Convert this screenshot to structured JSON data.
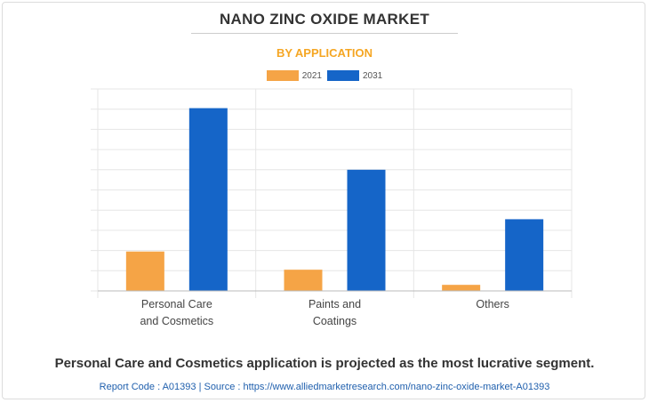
{
  "title": "NANO ZINC OXIDE MARKET",
  "subtitle": "BY APPLICATION",
  "footer": {
    "headline": "Personal Care and Cosmetics application is projected as the most lucrative segment.",
    "source": "Report Code : A01393  |  Source : https://www.alliedmarketresearch.com/nano-zinc-oxide-market-A01393"
  },
  "colors": {
    "series_2021": "#f5a446",
    "series_2031": "#1565c8",
    "grid": "#e6e6e6",
    "axis": "#bbbbbb"
  },
  "chart_data": {
    "type": "bar",
    "categories": [
      [
        "Personal Care",
        "and Cosmetics"
      ],
      [
        "Paints and",
        "Coatings"
      ],
      [
        "Others"
      ]
    ],
    "series": [
      {
        "name": "2021",
        "values": [
          19.5,
          10.5,
          3
        ]
      },
      {
        "name": "2031",
        "values": [
          90.5,
          60,
          35.5
        ]
      }
    ],
    "ylim": [
      0,
      100
    ],
    "ytick_count": 11,
    "grid": true,
    "legend": "top-center",
    "xlabel": "",
    "ylabel": ""
  }
}
